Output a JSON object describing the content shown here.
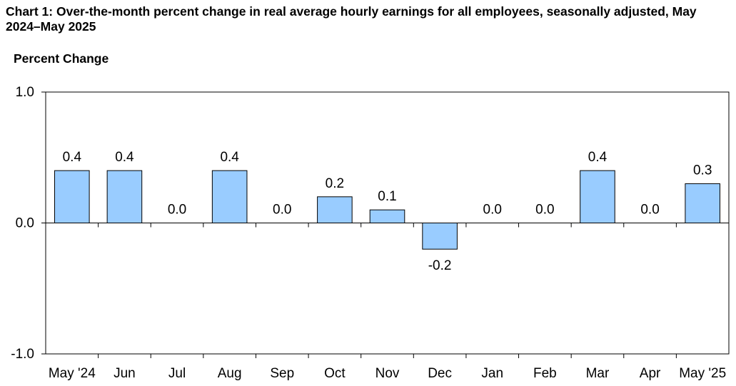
{
  "chart_data": {
    "type": "bar",
    "title": "Chart 1: Over-the-month percent change in real average hourly earnings for all employees, seasonally adjusted, May 2024–May 2025",
    "ylabel": "Percent Change",
    "xlabel": "",
    "ylim": [
      -1.0,
      1.0
    ],
    "yticks": [
      "1.0",
      "0.0",
      "-1.0"
    ],
    "ytick_values": [
      1.0,
      0.0,
      -1.0
    ],
    "categories": [
      "May '24",
      "Jun",
      "Jul",
      "Aug",
      "Sep",
      "Oct",
      "Nov",
      "Dec",
      "Jan",
      "Feb",
      "Mar",
      "Apr",
      "May '25"
    ],
    "values": [
      0.4,
      0.4,
      0.0,
      0.4,
      0.0,
      0.2,
      0.1,
      -0.2,
      0.0,
      0.0,
      0.4,
      0.0,
      0.3
    ],
    "value_labels": [
      "0.4",
      "0.4",
      "0.0",
      "0.4",
      "0.0",
      "0.2",
      "0.1",
      "-0.2",
      "0.0",
      "0.0",
      "0.4",
      "0.0",
      "0.3"
    ],
    "grid": false,
    "legend": "none",
    "bar_color": "#99ccff",
    "bar_edge_color": "#000000"
  }
}
